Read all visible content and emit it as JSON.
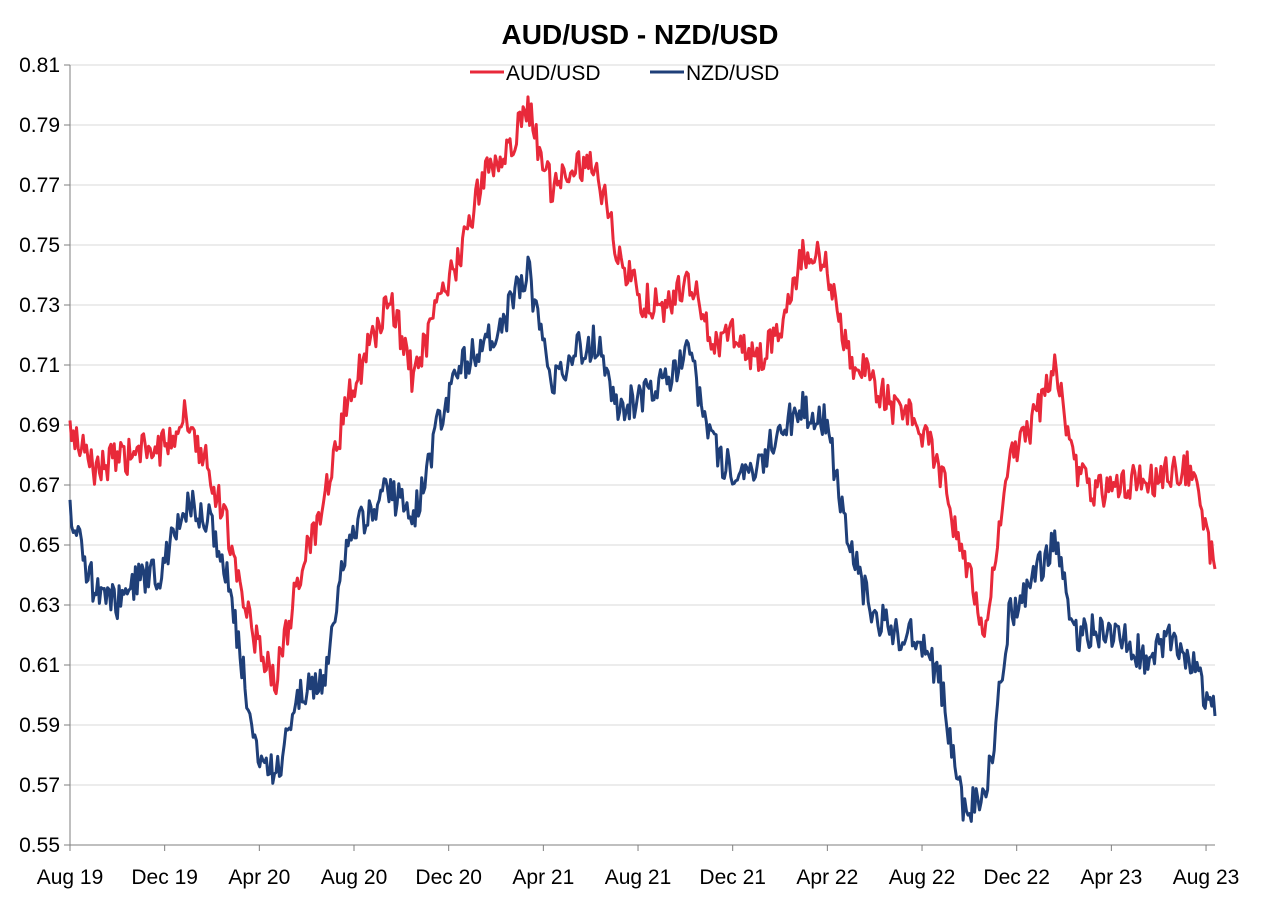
{
  "chart_data": {
    "type": "line",
    "title": "AUD/USD - NZD/USD",
    "xlabel": "",
    "ylabel": "",
    "ylim": [
      0.55,
      0.81
    ],
    "y_ticks": [
      "0.55",
      "0.57",
      "0.59",
      "0.61",
      "0.63",
      "0.65",
      "0.67",
      "0.69",
      "0.71",
      "0.73",
      "0.75",
      "0.77",
      "0.79",
      "0.81"
    ],
    "x_tick_labels": [
      "Aug 19",
      "Dec 19",
      "Apr 20",
      "Aug 20",
      "Dec 20",
      "Apr 21",
      "Aug 21",
      "Dec 21",
      "Apr 22",
      "Aug 22",
      "Dec 22",
      "Apr 23",
      "Aug 23"
    ],
    "grid": "horizontal",
    "legend_position": "top-center",
    "x": [
      "2019-08",
      "2019-09",
      "2019-10",
      "2019-11",
      "2019-12",
      "2020-01",
      "2020-02",
      "2020-03a",
      "2020-03b",
      "2020-04",
      "2020-05",
      "2020-06",
      "2020-07",
      "2020-08",
      "2020-09",
      "2020-10",
      "2020-11",
      "2020-12",
      "2021-01",
      "2021-02",
      "2021-03",
      "2021-04",
      "2021-05",
      "2021-06",
      "2021-07",
      "2021-08",
      "2021-09",
      "2021-10",
      "2021-11",
      "2021-12",
      "2022-01",
      "2022-02",
      "2022-03",
      "2022-04",
      "2022-05",
      "2022-06",
      "2022-07",
      "2022-08",
      "2022-09",
      "2022-10",
      "2022-11",
      "2022-12",
      "2023-01",
      "2023-02",
      "2023-03",
      "2023-04",
      "2023-05",
      "2023-06",
      "2023-07",
      "2023-08",
      "2023-08e"
    ],
    "series": [
      {
        "name": "AUD/USD",
        "color": "#e8293a",
        "values": [
          0.688,
          0.676,
          0.678,
          0.681,
          0.682,
          0.693,
          0.678,
          0.652,
          0.62,
          0.605,
          0.64,
          0.66,
          0.695,
          0.715,
          0.732,
          0.705,
          0.728,
          0.745,
          0.773,
          0.78,
          0.795,
          0.77,
          0.778,
          0.775,
          0.745,
          0.732,
          0.728,
          0.74,
          0.718,
          0.72,
          0.712,
          0.72,
          0.748,
          0.744,
          0.712,
          0.705,
          0.695,
          0.692,
          0.675,
          0.645,
          0.622,
          0.678,
          0.69,
          0.71,
          0.672,
          0.668,
          0.672,
          0.67,
          0.675,
          0.676,
          0.642
        ]
      },
      {
        "name": "NZD/USD",
        "color": "#1f3f78",
        "values": [
          0.66,
          0.637,
          0.63,
          0.639,
          0.64,
          0.663,
          0.66,
          0.636,
          0.585,
          0.572,
          0.6,
          0.603,
          0.645,
          0.662,
          0.668,
          0.658,
          0.688,
          0.708,
          0.718,
          0.725,
          0.742,
          0.703,
          0.715,
          0.718,
          0.695,
          0.7,
          0.705,
          0.716,
          0.683,
          0.673,
          0.675,
          0.688,
          0.696,
          0.692,
          0.65,
          0.628,
          0.62,
          0.62,
          0.605,
          0.562,
          0.565,
          0.626,
          0.638,
          0.65,
          0.62,
          0.622,
          0.618,
          0.612,
          0.62,
          0.61,
          0.593
        ]
      }
    ]
  }
}
